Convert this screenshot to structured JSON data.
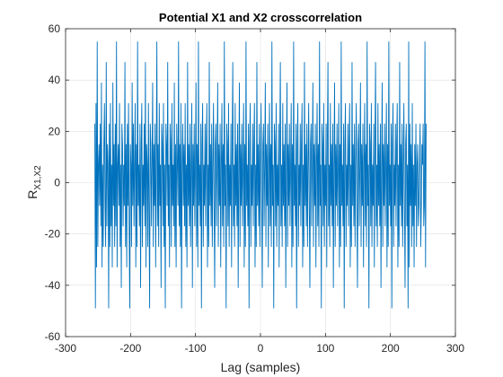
{
  "chart_data": {
    "type": "line",
    "title": "Potential X1 and X2 crosscorrelation",
    "xlabel": "Lag (samples)",
    "ylabel_main": "R",
    "ylabel_sub": "X1,X2",
    "xlim": [
      -300,
      300
    ],
    "ylim": [
      -60,
      60
    ],
    "xticks": [
      -300,
      -200,
      -100,
      0,
      100,
      200,
      300
    ],
    "yticks": [
      -60,
      -40,
      -20,
      0,
      20,
      40,
      60
    ],
    "xtick_labels": [
      "-300",
      "-200",
      "-100",
      "0",
      "100",
      "200",
      "300"
    ],
    "ytick_labels": [
      "-60",
      "-40",
      "-20",
      "0",
      "20",
      "40",
      "60"
    ],
    "grid": true,
    "line_color": "#0072BD",
    "x_start": -255,
    "x_end": 255,
    "series": [
      {
        "y": [
          23,
          -49,
          31,
          -33,
          55,
          -25,
          7,
          15,
          -9,
          23,
          -17,
          39,
          -33,
          7,
          -25,
          15,
          31,
          -9,
          -25,
          47,
          -17,
          15,
          7,
          -49,
          23,
          -25,
          31,
          -17,
          7,
          -33,
          39,
          -9,
          15,
          -25,
          23,
          -17,
          55,
          -33,
          7,
          15,
          -9,
          31,
          -25,
          7,
          -41,
          23,
          15,
          -17,
          7,
          -9,
          47,
          -25,
          15,
          -33,
          23,
          -9,
          31,
          -17,
          -49,
          15,
          7,
          -25,
          39,
          -9,
          23,
          -17,
          7,
          31,
          -33,
          15,
          -25,
          55,
          -9,
          7,
          -17,
          23,
          -41,
          15,
          31,
          -25,
          7,
          -9,
          23,
          -17,
          47,
          -33,
          15,
          7,
          -25,
          31,
          -9,
          -49,
          23,
          15,
          -17,
          7,
          39,
          -25,
          15,
          -9,
          23,
          -33,
          7,
          55,
          -17,
          15,
          -25,
          31,
          -9,
          7,
          -41,
          23,
          15,
          -17,
          31,
          -25,
          7,
          -49,
          23,
          15,
          -9,
          47,
          -17,
          7,
          -33,
          23,
          15,
          -25,
          31,
          -9,
          7,
          -17,
          39,
          -25,
          15,
          -33,
          23,
          7,
          -9,
          55,
          -17,
          15,
          -25,
          31,
          -49,
          7,
          23,
          -9,
          15,
          -17,
          31,
          -25,
          7,
          -33,
          47,
          -9,
          15,
          -17,
          23,
          -25,
          7,
          31,
          -41,
          15,
          -9,
          23,
          -17,
          7,
          39,
          -25,
          15,
          -33,
          55,
          -9,
          7,
          -17,
          23,
          -49,
          15,
          31,
          -25,
          7,
          -9,
          23,
          -17,
          15,
          31,
          -33,
          7,
          -25,
          47,
          -9,
          15,
          -17,
          23,
          -25,
          7,
          31,
          -9,
          -41,
          15,
          23,
          -17,
          7,
          39,
          -25,
          15,
          -9,
          23,
          -33,
          7,
          31,
          -17,
          15,
          -25,
          55,
          -9,
          7,
          -49,
          23,
          15,
          -17,
          31,
          -25,
          7,
          -9,
          23,
          -33,
          15,
          47,
          -17,
          7,
          -25,
          31,
          -9,
          15,
          -17,
          23,
          -41,
          7,
          39,
          -25,
          15,
          -9,
          23,
          -17,
          7,
          31,
          -33,
          15,
          -25,
          55,
          -9,
          7,
          -17,
          23,
          -49,
          15,
          31,
          -25,
          7,
          -9,
          23,
          -17,
          15,
          31,
          -33,
          7,
          -25,
          47,
          -9,
          15,
          -17,
          23,
          -25,
          7,
          31,
          -9,
          -41,
          15,
          23,
          -17,
          7,
          39,
          -25,
          15,
          -9,
          23,
          -33,
          7,
          31,
          -17,
          15,
          -25,
          55,
          -9,
          7,
          -49,
          23,
          15,
          -17,
          31,
          -25,
          7,
          -9,
          23,
          -33,
          15,
          47,
          -17,
          7,
          -25,
          31,
          -9,
          15,
          -17,
          23,
          -41,
          7,
          39,
          -25,
          15,
          -9,
          23,
          -17,
          7,
          31,
          -33,
          15,
          -25,
          55,
          -9,
          7,
          -17,
          23,
          -49,
          15,
          31,
          -25,
          7,
          -9,
          23,
          -17,
          15,
          31,
          -33,
          7,
          -25,
          47,
          -9,
          15,
          -17,
          23,
          -25,
          7,
          31,
          -9,
          -41,
          15,
          23,
          -17,
          7,
          39,
          -25,
          15,
          -9,
          23,
          -33,
          7,
          31,
          -17,
          15,
          -25,
          55,
          -9,
          7,
          -49,
          23,
          15,
          -17,
          31,
          -25,
          7,
          -9,
          23,
          -33,
          15,
          47,
          -17,
          7,
          -25,
          31,
          -9,
          15,
          -17,
          23,
          -41,
          7,
          39,
          -25,
          15,
          -9,
          23,
          -17,
          7,
          31,
          -33,
          15,
          -25,
          55,
          -9,
          7,
          -17,
          23,
          -49,
          15,
          31,
          -25,
          7,
          -9,
          23,
          -17,
          15,
          31,
          -33,
          7,
          -25,
          47,
          -9,
          15,
          -17,
          23,
          -25,
          7,
          31,
          -9,
          -41,
          15,
          23,
          -17,
          7,
          39,
          -25,
          15,
          -9,
          23,
          -33,
          7,
          31,
          -17,
          15,
          -25,
          55,
          -9,
          7,
          -49,
          23,
          15,
          -17,
          31,
          -25,
          7,
          -9,
          23,
          -33,
          15,
          47,
          -17,
          7,
          -25,
          31,
          -9,
          15,
          -17,
          23,
          -41,
          7,
          39,
          -25,
          15,
          -9,
          23,
          -17,
          7,
          31,
          -33,
          15,
          -25,
          55,
          -9,
          7,
          -17,
          23,
          -49,
          15,
          31,
          -25,
          7,
          -9,
          23,
          -17,
          15,
          31,
          -33,
          7,
          -25,
          47,
          -9,
          15,
          -17,
          23,
          -25,
          7,
          31,
          -9,
          -41,
          15,
          23,
          -17,
          7,
          -49,
          55,
          -33,
          23,
          -9,
          15,
          -25,
          31,
          -17,
          7,
          -33,
          15,
          -9,
          23,
          -25,
          7,
          15,
          -17,
          -9,
          7,
          23,
          -25,
          -9,
          15,
          7,
          23,
          -17,
          -9,
          55,
          -33,
          23
        ]
      }
    ]
  }
}
